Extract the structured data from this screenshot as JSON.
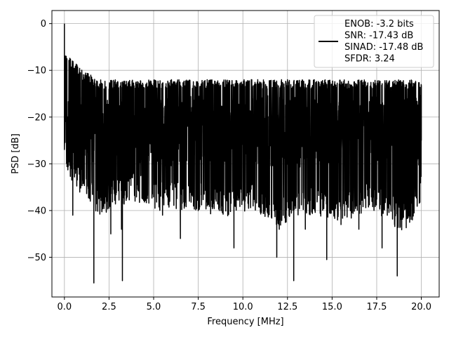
{
  "chart_data": {
    "type": "line",
    "xlabel": "Frequency [MHz]",
    "ylabel": "PSD [dB]",
    "xlim": [
      -0.7,
      21.0
    ],
    "ylim": [
      -58.5,
      2.8
    ],
    "xticks": [
      0.0,
      2.5,
      5.0,
      7.5,
      10.0,
      12.5,
      15.0,
      17.5,
      20.0
    ],
    "xtick_labels": [
      "0.0",
      "2.5",
      "5.0",
      "7.5",
      "10.0",
      "12.5",
      "15.0",
      "17.5",
      "20.0"
    ],
    "yticks": [
      0,
      -10,
      -20,
      -30,
      -40,
      -50
    ],
    "ytick_labels": [
      "0",
      "−10",
      "−20",
      "−30",
      "−40",
      "−50"
    ],
    "grid": true,
    "legend": {
      "placement": "top-right",
      "lines": [
        "ENOB: -3.2 bits",
        "SNR: -17.43 dB",
        "SINAD: -17.48 dB",
        "SFDR: 3.24"
      ]
    },
    "series": [
      {
        "color": "#000000",
        "x_range": [
          0.0,
          20.0
        ],
        "values_note_free": true,
        "envelope_upper": [
          -8,
          -12,
          -14,
          -14,
          -14,
          -14,
          -14,
          -14,
          -14,
          -14,
          -14,
          -14,
          -14,
          -14,
          -14,
          -14,
          -14,
          -14,
          -14,
          -14,
          -14
        ],
        "envelope_lower": [
          -28,
          -37,
          -45,
          -40,
          -40,
          -42,
          -43,
          -42,
          -44,
          -45,
          -43,
          -44,
          -50,
          -45,
          -44,
          -48,
          -46,
          -43,
          -45,
          -52,
          -40
        ],
        "x": [
          0.0,
          0.03,
          0.06,
          0.1,
          0.15,
          0.3,
          0.47,
          0.7,
          1.0,
          1.45,
          1.65,
          2.0,
          2.5,
          2.6,
          3.0,
          3.2,
          3.25,
          3.5,
          4.0,
          4.5,
          5.0,
          5.5,
          6.0,
          6.5,
          7.0,
          7.5,
          8.0,
          8.5,
          9.0,
          9.5,
          9.6,
          10.0,
          10.5,
          11.0,
          11.5,
          11.9,
          12.5,
          12.85,
          13.0,
          13.5,
          14.0,
          14.7,
          15.0,
          15.5,
          16.0,
          16.5,
          17.0,
          17.5,
          17.8,
          18.0,
          18.5,
          18.65,
          19.0,
          19.5,
          20.0
        ],
        "y": [
          0.0,
          -12.0,
          -9.0,
          -16.0,
          -22.0,
          -27.0,
          -41.0,
          -20.0,
          -14.0,
          -38.0,
          -55.5,
          -22.0,
          -14.0,
          -45.0,
          -18.0,
          -44.0,
          -55.0,
          -23.0,
          -14.0,
          -38.0,
          -13.0,
          -41.0,
          -12.0,
          -46.0,
          -14.0,
          -40.0,
          -12.0,
          -38.0,
          -15.0,
          -48.0,
          -13.0,
          -20.0,
          -12.0,
          -38.0,
          -14.0,
          -50.0,
          -12.0,
          -55.0,
          -16.0,
          -44.0,
          -12.0,
          -50.5,
          -17.0,
          -43.0,
          -14.0,
          -44.0,
          -13.0,
          -37.0,
          -48.0,
          -14.0,
          -43.0,
          -54.0,
          -14.0,
          -42.0,
          -25.0
        ]
      }
    ]
  }
}
